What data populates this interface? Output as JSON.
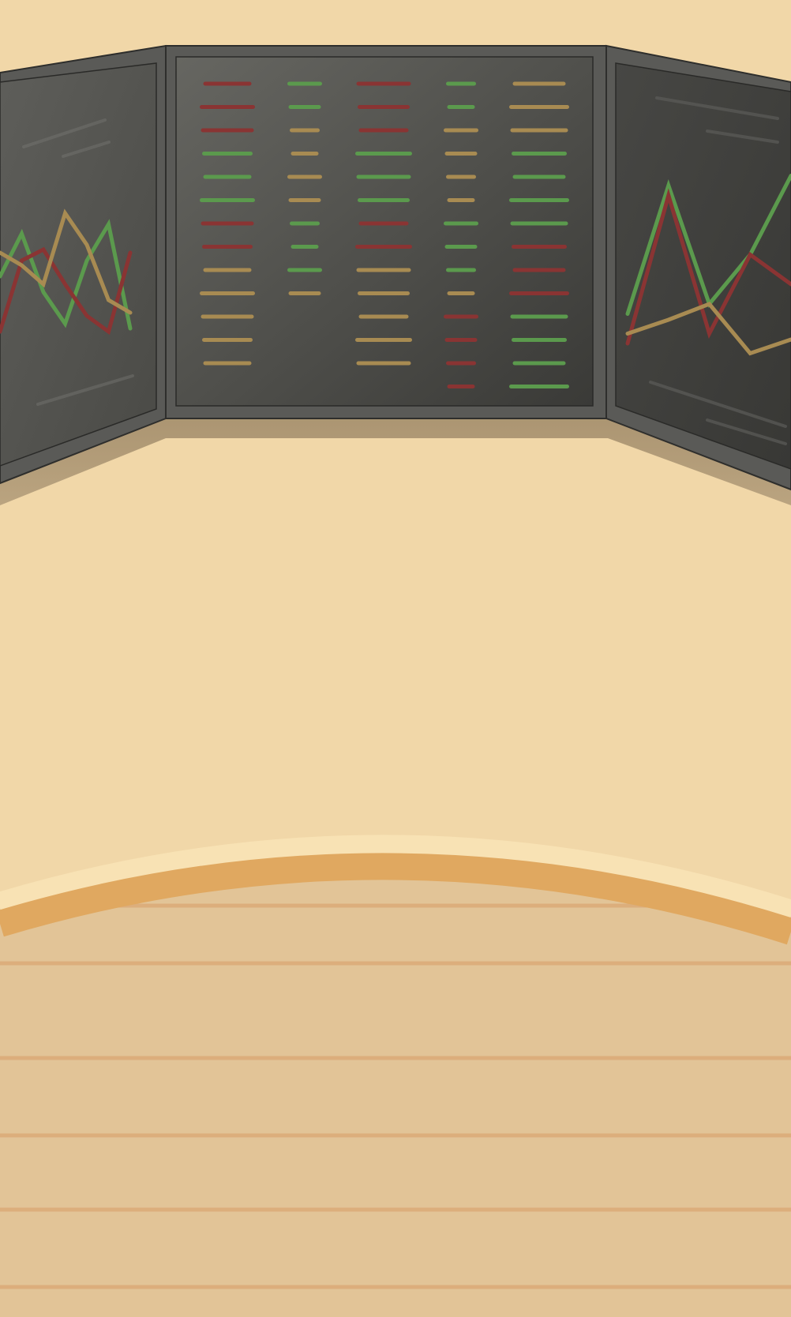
{
  "scene": {
    "description_name": "trading-desk-background"
  },
  "palette": {
    "wall": "#f1d7a8",
    "desk_top": "#e2c497",
    "desk_rim": "#e0a860",
    "desk_rim_highlight": "#f8e2b4",
    "desk_stripe": "#dcae7c",
    "monitor_bezel": "#5a5a57",
    "monitor_bezel_edge": "#2e2e2c",
    "screen_dark": "#3b3b38",
    "screen_light": "#6a6a66",
    "red": "#8a3433",
    "green": "#5b9a4d",
    "gold": "#a88b52",
    "shadow": "#ad9876"
  },
  "ticker_columns": [
    [
      "red",
      "red",
      "red",
      "green",
      "green",
      "green",
      "red",
      "red",
      "gold",
      "gold",
      "gold",
      "gold",
      "gold"
    ],
    [
      "green",
      "green",
      "gold",
      "gold",
      "gold",
      "gold",
      "green",
      "green",
      "green",
      "gold"
    ],
    [
      "red",
      "red",
      "red",
      "green",
      "green",
      "green",
      "red",
      "red",
      "gold",
      "gold",
      "gold",
      "gold",
      "gold"
    ],
    [
      "green",
      "green",
      "gold",
      "gold",
      "gold",
      "gold",
      "green",
      "green",
      "green",
      "gold",
      "red",
      "red",
      "red",
      "red"
    ],
    [
      "gold",
      "gold",
      "gold",
      "green",
      "green",
      "green",
      "green",
      "red",
      "red",
      "red",
      "green",
      "green",
      "green",
      "green"
    ]
  ],
  "left_chart_series": [
    {
      "color": "green",
      "values": [
        0.45,
        0.72,
        0.35,
        0.15,
        0.55,
        0.78,
        0.12
      ]
    },
    {
      "color": "red",
      "values": [
        0.1,
        0.55,
        0.62,
        0.4,
        0.2,
        0.1,
        0.6
      ]
    },
    {
      "color": "gold",
      "values": [
        0.6,
        0.52,
        0.4,
        0.85,
        0.65,
        0.3,
        0.22
      ]
    }
  ],
  "right_chart_series": [
    {
      "color": "green",
      "values": [
        0.25,
        0.9,
        0.3,
        0.55,
        0.95
      ]
    },
    {
      "color": "red",
      "values": [
        0.1,
        0.85,
        0.15,
        0.55,
        0.4
      ]
    },
    {
      "color": "gold",
      "values": [
        0.15,
        0.22,
        0.3,
        0.05,
        0.12
      ]
    }
  ]
}
